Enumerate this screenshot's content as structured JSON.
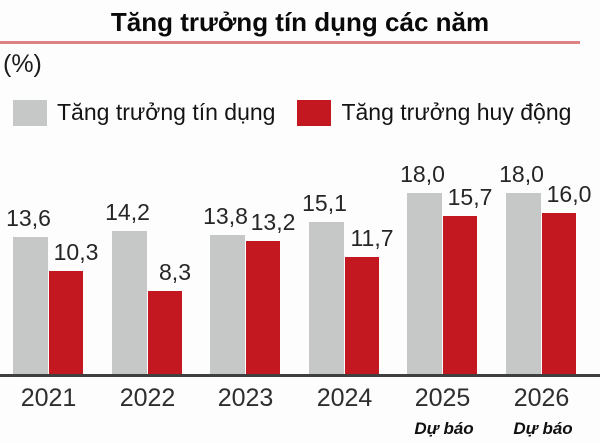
{
  "title": "Tăng trưởng tín dụng các năm",
  "unit_label": "(%)",
  "legend": [
    {
      "label": "Tăng trưởng tín dụng",
      "color": "#c6c7c7"
    },
    {
      "label": "Tăng trưởng huy động",
      "color": "#c3181f"
    }
  ],
  "colors": {
    "bar_gray": "#c6c7c7",
    "bar_red": "#c3181f",
    "title_rule": "#dd8383",
    "axis_line": "#3f3f3f"
  },
  "chart_data": {
    "type": "bar",
    "title": "Tăng trưởng tín dụng các năm",
    "ylabel": "(%)",
    "categories": [
      "2021",
      "2022",
      "2023",
      "2024",
      "2025",
      "2026"
    ],
    "series": [
      {
        "name": "Tăng trưởng tín dụng",
        "color": "#c6c7c7",
        "values": [
          13.6,
          14.2,
          13.8,
          15.1,
          18.0,
          18.0
        ],
        "labels": [
          "13,6",
          "14,2",
          "13,8",
          "15,1",
          "18,0",
          "18,0"
        ]
      },
      {
        "name": "Tăng trưởng huy động",
        "color": "#c3181f",
        "values": [
          10.3,
          8.3,
          13.2,
          11.7,
          15.7,
          16.0
        ],
        "labels": [
          "10,3",
          "8,3",
          "13,2",
          "11,7",
          "15,7",
          "16,0"
        ]
      }
    ],
    "forecast_note": "Dự báo",
    "forecast_categories": [
      "2025",
      "2026"
    ],
    "ylim": [
      0,
      20
    ],
    "grid": false,
    "legend_position": "top",
    "value_label_decimal_separator": ","
  }
}
